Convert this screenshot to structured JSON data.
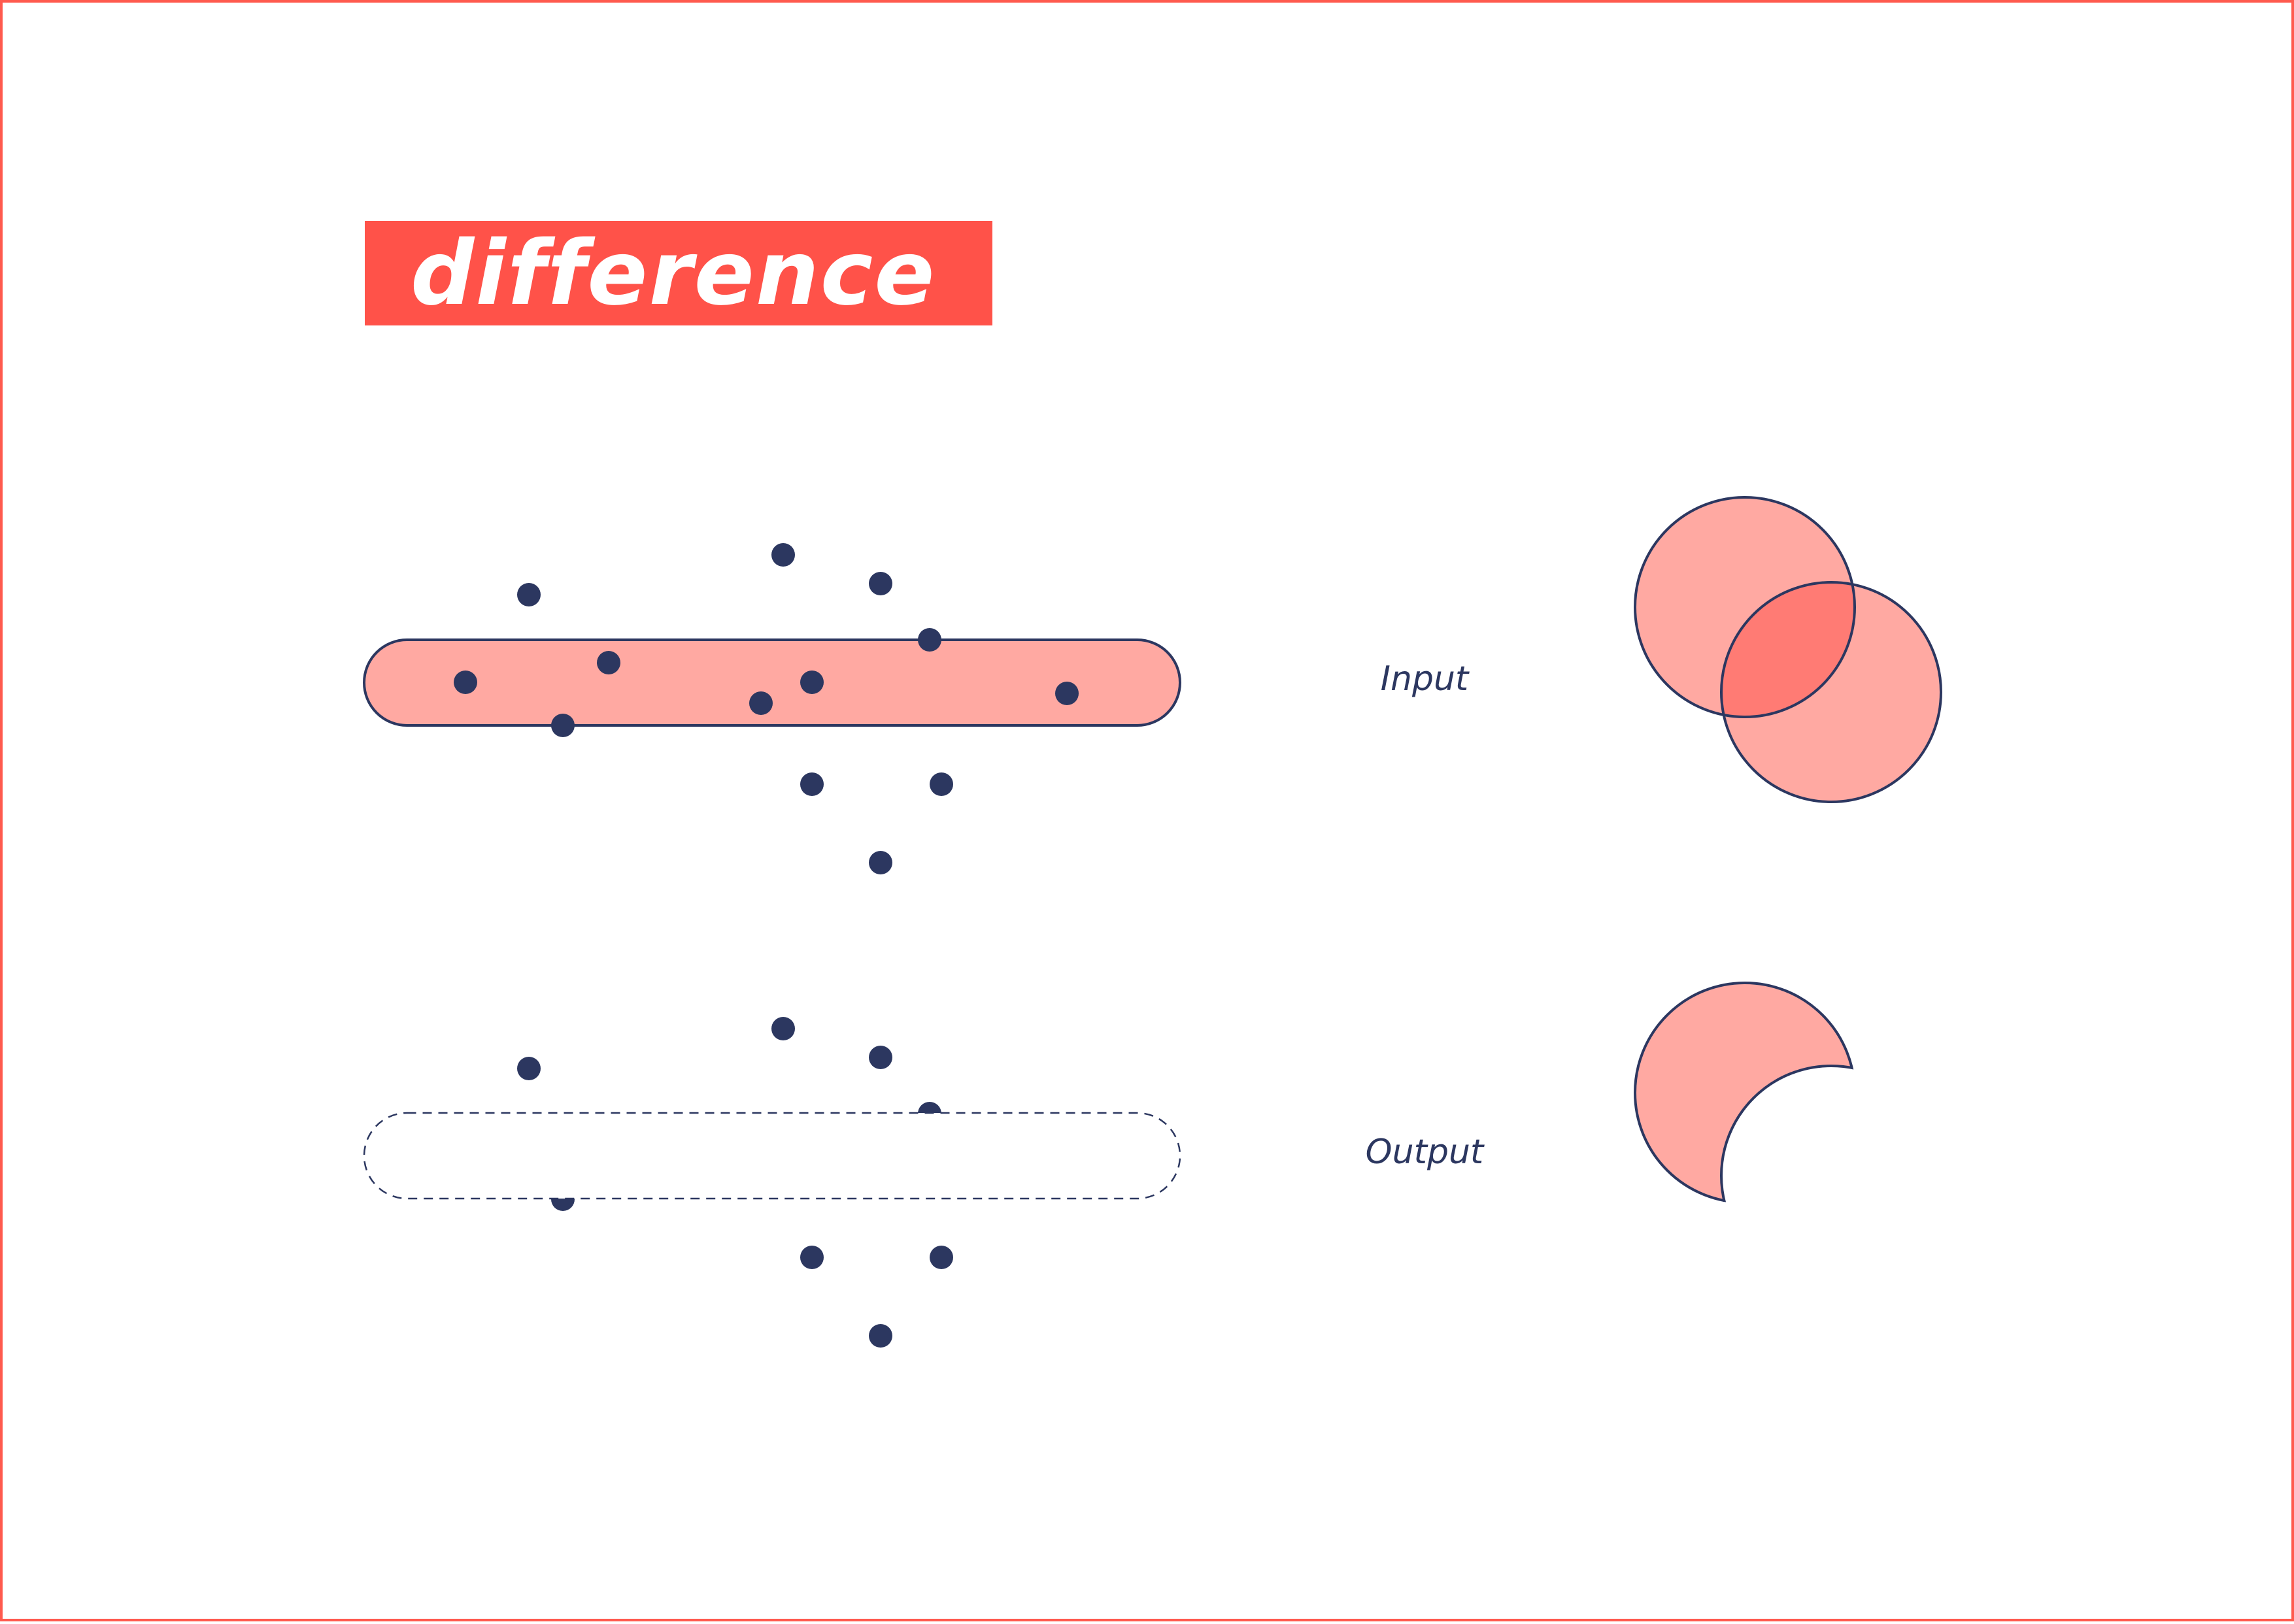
{
  "title": "difference",
  "labels": {
    "input": "Input",
    "output": "Output"
  },
  "colors": {
    "accent": "#ff5249",
    "border": "#ff5a4e",
    "shape_fill": "#ffa9a2",
    "overlap_fill": "#ff7b74",
    "stroke": "#2c3760",
    "point": "#2c3760"
  },
  "icons": {
    "input_venn": "two-overlapping-circles-icon",
    "output_venn": "crescent-difference-icon"
  }
}
